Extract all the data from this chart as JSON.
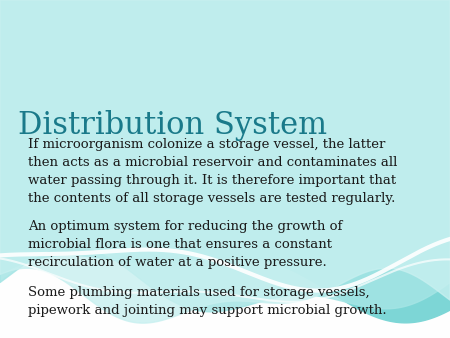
{
  "title": "Distribution System",
  "title_color": "#1A7A8A",
  "title_fontsize": 22,
  "body_fontsize": 9.5,
  "body_color": "#1a1a1a",
  "background_color": "#f0f4f4",
  "paragraphs": [
    "If microorganism colonize a storage vessel, the latter\nthen acts as a microbial reservoir and contaminates all\nwater passing through it. It is therefore important that\nthe contents of all storage vessels are tested regularly.",
    "An optimum system for reducing the growth of\nmicrobial flora is one that ensures a constant\nrecirculation of water at a positive pressure.",
    "Some plumbing materials used for storage vessels,\npipework and jointing may support microbial growth."
  ],
  "wave_bg_color": "#6BCFCF",
  "wave_mid_color": "#A8E4E4",
  "wave_front_color": "#D6F4F4",
  "wave_line_color": "#FFFFFF",
  "fig_width": 4.5,
  "fig_height": 3.38,
  "dpi": 100
}
